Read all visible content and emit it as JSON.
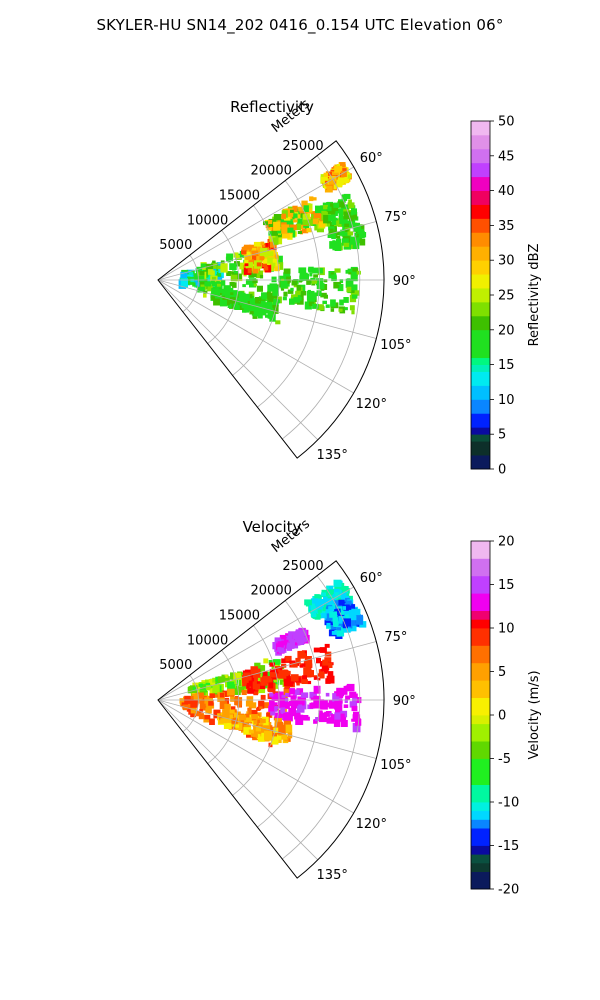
{
  "figure_title": "SKYLER-HU  SN14_202  0416_0.154 UTC Elevation 06°",
  "range_axis_label": "Meters",
  "range_ticks": [
    "5000",
    "10000",
    "15000",
    "20000",
    "25000"
  ],
  "angle_ticks": [
    "60°",
    "75°",
    "90°",
    "105°",
    "120°",
    "135°"
  ],
  "chart_data": [
    {
      "type": "heatmap",
      "title": "Reflectivity",
      "projection": "polar sector",
      "theta_range_deg": [
        52,
        142
      ],
      "r_range_m": [
        0,
        28000
      ],
      "grid": true,
      "colorbar": {
        "label": "Reflectivity dBZ",
        "range": [
          0,
          50
        ],
        "ticks": [
          "0",
          "5",
          "10",
          "15",
          "20",
          "25",
          "30",
          "35",
          "40",
          "45",
          "50"
        ],
        "stops": [
          {
            "v": 0,
            "color": "#0b1a5c"
          },
          {
            "v": 2,
            "color": "#0d2f2a"
          },
          {
            "v": 4,
            "color": "#0a4d3a"
          },
          {
            "v": 5,
            "color": "#0a0aa0"
          },
          {
            "v": 6,
            "color": "#0022ff"
          },
          {
            "v": 8,
            "color": "#0a86ff"
          },
          {
            "v": 10,
            "color": "#00bfff"
          },
          {
            "v": 12,
            "color": "#00eaf0"
          },
          {
            "v": 14,
            "color": "#00f0b8"
          },
          {
            "v": 15,
            "color": "#00f880"
          },
          {
            "v": 16,
            "color": "#20e020"
          },
          {
            "v": 20,
            "color": "#3ec000"
          },
          {
            "v": 22,
            "color": "#7fe000"
          },
          {
            "v": 24,
            "color": "#c0f000"
          },
          {
            "v": 26,
            "color": "#f0f000"
          },
          {
            "v": 28,
            "color": "#ffd000"
          },
          {
            "v": 30,
            "color": "#ffb000"
          },
          {
            "v": 32,
            "color": "#ff8c00"
          },
          {
            "v": 34,
            "color": "#ff5000"
          },
          {
            "v": 36,
            "color": "#ff0000"
          },
          {
            "v": 38,
            "color": "#f00060"
          },
          {
            "v": 40,
            "color": "#f000c0"
          },
          {
            "v": 42,
            "color": "#c040ff"
          },
          {
            "v": 44,
            "color": "#d070f0"
          },
          {
            "v": 46,
            "color": "#e090e8"
          },
          {
            "v": 48,
            "color": "#f0b8f0"
          },
          {
            "v": 50,
            "color": "#fce8fc"
          }
        ]
      },
      "echo_regions": [
        {
          "theta": [
            76,
            100
          ],
          "r": [
            3000,
            8000
          ],
          "value": [
            10,
            20
          ]
        },
        {
          "theta": [
            72,
            110
          ],
          "r": [
            5000,
            16000
          ],
          "value": [
            16,
            25
          ]
        },
        {
          "theta": [
            70,
            84
          ],
          "r": [
            11000,
            15000
          ],
          "value": [
            24,
            38
          ]
        },
        {
          "theta": [
            62,
            72
          ],
          "r": [
            15000,
            22000
          ],
          "value": [
            18,
            34
          ]
        },
        {
          "theta": [
            86,
            100
          ],
          "r": [
            14000,
            25000
          ],
          "value": [
            17,
            23
          ]
        },
        {
          "theta": [
            66,
            80
          ],
          "r": [
            22000,
            26000
          ],
          "value": [
            17,
            24
          ]
        },
        {
          "theta": [
            58,
            62
          ],
          "r": [
            24000,
            27000
          ],
          "value": [
            24,
            36
          ]
        },
        {
          "theta": [
            100,
            110
          ],
          "r": [
            7000,
            15000
          ],
          "value": [
            16,
            22
          ]
        }
      ]
    },
    {
      "type": "heatmap",
      "title": "Velocity",
      "projection": "polar sector",
      "theta_range_deg": [
        52,
        142
      ],
      "r_range_m": [
        0,
        28000
      ],
      "grid": true,
      "colorbar": {
        "label": "Velocity (m/s)",
        "range": [
          -20,
          20
        ],
        "ticks": [
          "-20",
          "-15",
          "-10",
          "-5",
          "0",
          "5",
          "10",
          "15",
          "20"
        ],
        "stops": [
          {
            "v": -20,
            "color": "#0b1a5c"
          },
          {
            "v": -18,
            "color": "#0d3a30"
          },
          {
            "v": -17,
            "color": "#0a5040"
          },
          {
            "v": -16,
            "color": "#0a0aa0"
          },
          {
            "v": -15,
            "color": "#0022ff"
          },
          {
            "v": -13,
            "color": "#0a86ff"
          },
          {
            "v": -12,
            "color": "#00d8ff"
          },
          {
            "v": -11,
            "color": "#00f0e0"
          },
          {
            "v": -10,
            "color": "#00f8a0"
          },
          {
            "v": -8,
            "color": "#20f020"
          },
          {
            "v": -5,
            "color": "#60d800"
          },
          {
            "v": -3,
            "color": "#a0f000"
          },
          {
            "v": -1,
            "color": "#d8f000"
          },
          {
            "v": 0,
            "color": "#f8f000"
          },
          {
            "v": 2,
            "color": "#ffc000"
          },
          {
            "v": 4,
            "color": "#ffa000"
          },
          {
            "v": 6,
            "color": "#ff7000"
          },
          {
            "v": 8,
            "color": "#ff3000"
          },
          {
            "v": 10,
            "color": "#ff0000"
          },
          {
            "v": 11,
            "color": "#f00070"
          },
          {
            "v": 12,
            "color": "#f000f0"
          },
          {
            "v": 14,
            "color": "#c040ff"
          },
          {
            "v": 16,
            "color": "#d070f0"
          },
          {
            "v": 18,
            "color": "#f0b8f0"
          },
          {
            "v": 20,
            "color": "#fce8fc"
          }
        ]
      },
      "echo_regions": [
        {
          "theta": [
            70,
            84
          ],
          "r": [
            4000,
            16000
          ],
          "value": [
            -6,
            0
          ]
        },
        {
          "theta": [
            84,
            112
          ],
          "r": [
            3000,
            16000
          ],
          "value": [
            4,
            10
          ]
        },
        {
          "theta": [
            72,
            84
          ],
          "r": [
            11000,
            22000
          ],
          "value": [
            9,
            11
          ]
        },
        {
          "theta": [
            86,
            98
          ],
          "r": [
            14000,
            25000
          ],
          "value": [
            12,
            15
          ]
        },
        {
          "theta": [
            100,
            110
          ],
          "r": [
            8000,
            17000
          ],
          "value": [
            1,
            7
          ]
        },
        {
          "theta": [
            57,
            63
          ],
          "r": [
            22000,
            27000
          ],
          "value": [
            -12,
            -9
          ]
        },
        {
          "theta": [
            62,
            70
          ],
          "r": [
            23000,
            27000
          ],
          "value": [
            -14,
            -10
          ]
        },
        {
          "theta": [
            64,
            68
          ],
          "r": [
            16000,
            20000
          ],
          "value": [
            13,
            16
          ]
        }
      ]
    }
  ]
}
